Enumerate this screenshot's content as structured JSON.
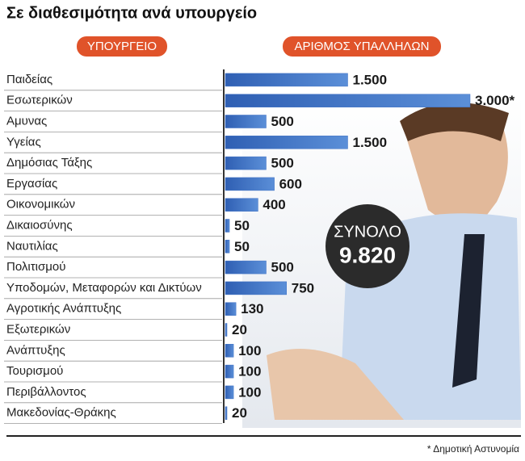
{
  "chart_data": {
    "type": "bar",
    "orientation": "horizontal",
    "title": "Σε διαθεσιμότητα ανά υπουργείο",
    "category_header": "ΥΠΟΥΡΓΕΙΟ",
    "value_header": "ΑΡΙΘΜΟΣ ΥΠΑΛΛΗΛΩΝ",
    "categories": [
      "Παιδείας",
      "Εσωτερικών",
      "Αμυνας",
      "Υγείας",
      "Δημόσιας Τάξης",
      "Εργασίας",
      "Οικονομικών",
      "Δικαιοσύνης",
      "Ναυτιλίας",
      "Πολιτισμού",
      "Υποδομών, Μεταφορών και Δικτύων",
      "Αγροτικής Ανάπτυξης",
      "Εξωτερικών",
      "Ανάπτυξης",
      "Τουρισμού",
      "Περιβάλλοντος",
      "Μακεδονίας-Θράκης"
    ],
    "values": [
      1500,
      3000,
      500,
      1500,
      500,
      600,
      400,
      50,
      50,
      500,
      750,
      130,
      20,
      100,
      100,
      100,
      20
    ],
    "value_labels": [
      "1.500",
      "3.000*",
      "500",
      "1.500",
      "500",
      "600",
      "400",
      "50",
      "50",
      "500",
      "750",
      "130",
      "20",
      "100",
      "100",
      "100",
      "20"
    ],
    "color": "#3d6fc4",
    "total_label": "ΣΥΝΟΛΟ",
    "total_value": 9820,
    "total_value_label": "9.820",
    "footnote": "* Δημοτική Αστυνομία"
  }
}
